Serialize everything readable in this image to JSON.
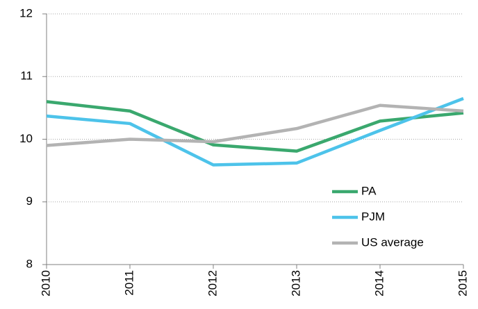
{
  "chart_data": {
    "type": "line",
    "x": [
      2010,
      2011,
      2012,
      2013,
      2014,
      2015
    ],
    "xlim": [
      2010,
      2015
    ],
    "xticks": [
      2010,
      2011,
      2012,
      2013,
      2014,
      2015
    ],
    "ylim": [
      8,
      12
    ],
    "yticks": [
      8,
      9,
      10,
      11,
      12
    ],
    "grid": true,
    "legend": "lower right",
    "series": [
      {
        "name": "PA",
        "color": "#3aa86e",
        "values": [
          10.6,
          10.45,
          9.91,
          9.81,
          10.29,
          10.42
        ]
      },
      {
        "name": "PJM",
        "color": "#4dc3ea",
        "values": [
          10.37,
          10.25,
          9.59,
          9.62,
          10.14,
          10.65
        ]
      },
      {
        "name": "US average",
        "color": "#b3b3b3",
        "values": [
          9.9,
          10.0,
          9.96,
          10.17,
          10.54,
          10.45
        ]
      }
    ]
  }
}
